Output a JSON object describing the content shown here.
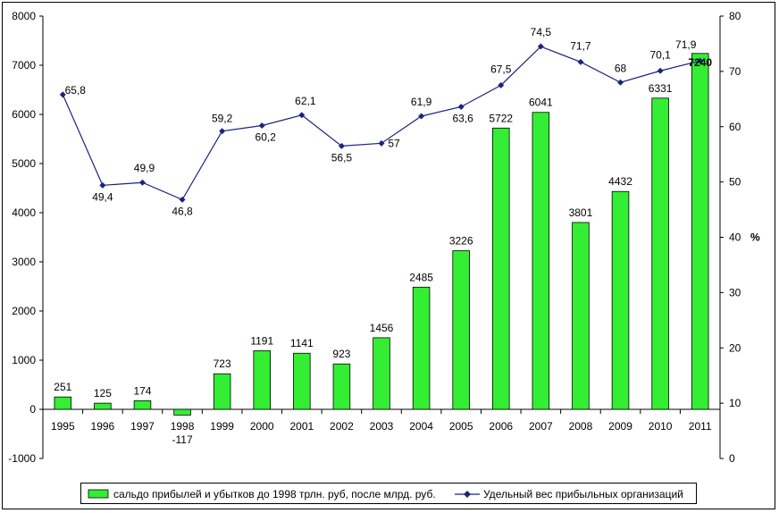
{
  "chart_data": {
    "type": "bar+line",
    "categories": [
      "1995",
      "1996",
      "1997",
      "1998",
      "1999",
      "2000",
      "2001",
      "2002",
      "2003",
      "2004",
      "2005",
      "2006",
      "2007",
      "2008",
      "2009",
      "2010",
      "2011"
    ],
    "category_extra_labels": {
      "1998": "-117"
    },
    "series": [
      {
        "name": "сальдо прибылей и убытков до 1998 трлн. руб, после млрд. руб.",
        "type": "bar",
        "axis": "left",
        "color": "#33ee33",
        "values": [
          251,
          125,
          174,
          -117,
          723,
          1191,
          1141,
          923,
          1456,
          2485,
          3226,
          5722,
          6041,
          3801,
          4432,
          6331,
          7240
        ],
        "labels": [
          "251",
          "125",
          "174",
          "",
          "723",
          "1191",
          "1141",
          "923",
          "1456",
          "2485",
          "3226",
          "5722",
          "6041",
          "3801",
          "4432",
          "6331",
          "7240"
        ]
      },
      {
        "name": "Удельный вес прибыльных организаций",
        "type": "line",
        "axis": "right",
        "color": "#1a237e",
        "values": [
          65.8,
          49.4,
          49.9,
          46.8,
          59.2,
          60.2,
          62.1,
          56.5,
          57,
          61.9,
          63.6,
          67.5,
          74.5,
          71.7,
          68,
          70.1,
          71.9
        ],
        "labels": [
          "65,8",
          "49,4",
          "49,9",
          "46,8",
          "59,2",
          "60,2",
          "62,1",
          "56,5",
          "57",
          "61,9",
          "63,6",
          "67,5",
          "74,5",
          "71,7",
          "68",
          "70,1",
          "71,9"
        ]
      }
    ],
    "y_left": {
      "min": -1000,
      "max": 8000,
      "ticks": [
        -1000,
        0,
        1000,
        2000,
        3000,
        4000,
        5000,
        6000,
        7000,
        8000
      ]
    },
    "y_right": {
      "min": 0,
      "max": 80,
      "ticks": [
        0,
        10,
        20,
        30,
        40,
        50,
        60,
        70,
        80
      ],
      "unit_label": "%"
    },
    "grid": false,
    "legend_position": "bottom"
  }
}
